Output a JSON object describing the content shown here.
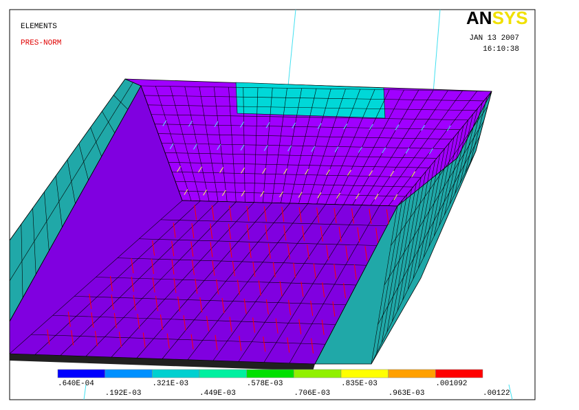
{
  "header": {
    "mode": "ELEMENTS",
    "quantity": "PRES-NORM",
    "logo_left": "AN",
    "logo_right": "SYS",
    "date": "JAN 13 2007",
    "time": "16:10:38"
  },
  "legend": {
    "labels": [
      ".640E-04",
      ".192E-03",
      ".321E-03",
      ".449E-03",
      ".578E-03",
      ".706E-03",
      ".835E-03",
      ".963E-03",
      ".001092",
      ".00122"
    ],
    "colors": [
      "#0000ff",
      "#0090ff",
      "#00d0d0",
      "#00f0a0",
      "#00e000",
      "#90f000",
      "#ffff00",
      "#ffa000",
      "#ff0000"
    ]
  }
}
